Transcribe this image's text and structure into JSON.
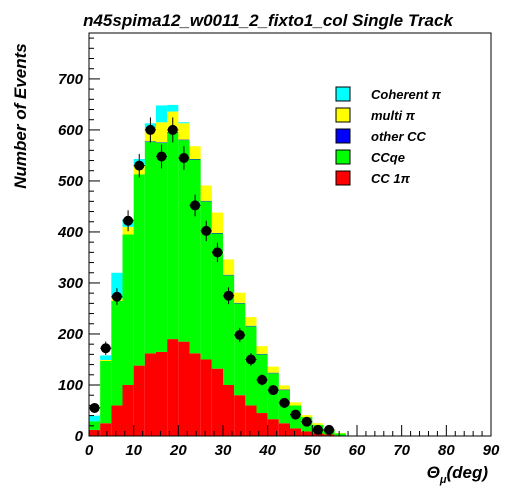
{
  "chart_data": {
    "type": "bar",
    "stacked": true,
    "title": "n45spima12_w0011_2_fixto1_col Single Track",
    "ylabel": "Number of Events",
    "xlabel_main": "Θ",
    "xlabel_sub": "μ",
    "xlabel_unit": "(deg)",
    "xlim": [
      0,
      90
    ],
    "ylim": [
      0,
      790
    ],
    "x_ticks": [
      0,
      10,
      20,
      30,
      40,
      50,
      60,
      70,
      80,
      90
    ],
    "y_ticks": [
      0,
      100,
      200,
      300,
      400,
      500,
      600,
      700
    ],
    "bin_width": 2.5,
    "bin_edges_start": 0,
    "legend_position": "top-right",
    "series": [
      {
        "name": "CC 1π",
        "color": "#ff0000",
        "values": [
          12,
          25,
          60,
          100,
          138,
          162,
          165,
          190,
          185,
          162,
          150,
          132,
          100,
          80,
          60,
          45,
          33,
          25,
          15,
          9,
          5,
          3,
          1,
          0
        ]
      },
      {
        "name": "CCqe",
        "color": "#00ff00",
        "values": [
          17,
          122,
          205,
          295,
          375,
          415,
          410,
          405,
          395,
          380,
          310,
          265,
          215,
          180,
          155,
          115,
          90,
          65,
          45,
          28,
          17,
          8,
          4,
          1
        ]
      },
      {
        "name": "other CC",
        "color": "#0000ff",
        "values": [
          0,
          0,
          0,
          0,
          0,
          1,
          1,
          1,
          1,
          1,
          1,
          1,
          1,
          1,
          1,
          1,
          1,
          1,
          0,
          0,
          0,
          0,
          0,
          0
        ]
      },
      {
        "name": "multi π",
        "color": "#ffff00",
        "values": [
          0,
          2,
          5,
          15,
          18,
          25,
          39,
          40,
          32,
          25,
          30,
          40,
          30,
          20,
          17,
          15,
          12,
          8,
          6,
          4,
          3,
          2,
          1,
          0
        ]
      },
      {
        "name": "Coherent π",
        "color": "#00ffff",
        "values": [
          11,
          9,
          50,
          15,
          12,
          10,
          33,
          13,
          2,
          0,
          0,
          0,
          0,
          0,
          0,
          0,
          0,
          0,
          0,
          0,
          0,
          0,
          0,
          0
        ]
      }
    ],
    "data_points": {
      "x": [
        1.25,
        3.75,
        6.25,
        8.75,
        11.25,
        13.75,
        16.25,
        18.75,
        21.25,
        23.75,
        26.25,
        28.75,
        31.25,
        33.75,
        36.25,
        38.75,
        41.25,
        43.75,
        46.25,
        48.75,
        51.25,
        53.75
      ],
      "y": [
        55,
        172,
        273,
        422,
        530,
        600,
        548,
        600,
        545,
        452,
        402,
        360,
        275,
        198,
        150,
        110,
        90,
        65,
        42,
        28,
        12,
        12
      ]
    }
  }
}
